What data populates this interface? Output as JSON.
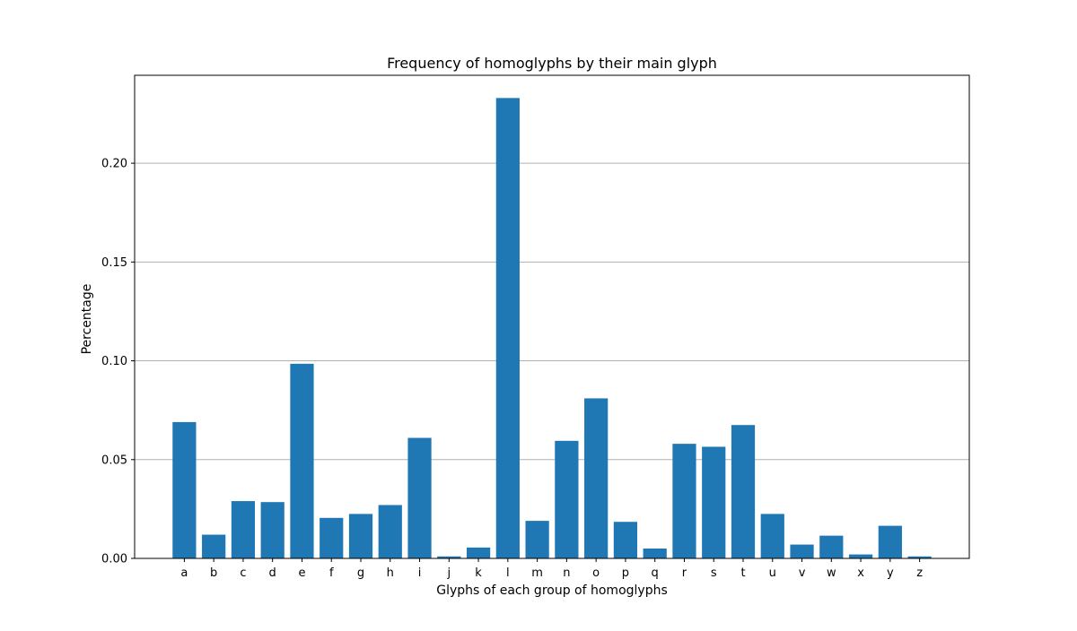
{
  "chart_data": {
    "type": "bar",
    "title": "Frequency of homoglyphs by their main glyph",
    "xlabel": "Glyphs of each group of homoglyphs",
    "ylabel": "Percentage",
    "categories": [
      "a",
      "b",
      "c",
      "d",
      "e",
      "f",
      "g",
      "h",
      "i",
      "j",
      "k",
      "l",
      "m",
      "n",
      "o",
      "p",
      "q",
      "r",
      "s",
      "t",
      "u",
      "v",
      "w",
      "x",
      "y",
      "z"
    ],
    "values": [
      0.069,
      0.012,
      0.029,
      0.0285,
      0.0985,
      0.0205,
      0.0225,
      0.027,
      0.061,
      0.001,
      0.0055,
      0.233,
      0.019,
      0.0595,
      0.081,
      0.0185,
      0.005,
      0.058,
      0.0565,
      0.0675,
      0.0225,
      0.007,
      0.0115,
      0.002,
      0.0165,
      0.001
    ],
    "ylim": [
      0,
      0.2445
    ],
    "yticks": [
      0.0,
      0.05,
      0.1,
      0.15,
      0.2
    ],
    "ytick_labels": [
      "0.00",
      "0.05",
      "0.10",
      "0.15",
      "0.20"
    ],
    "grid": "y",
    "bar_color": "#1f77b4",
    "grid_color": "#b0b0b0"
  }
}
